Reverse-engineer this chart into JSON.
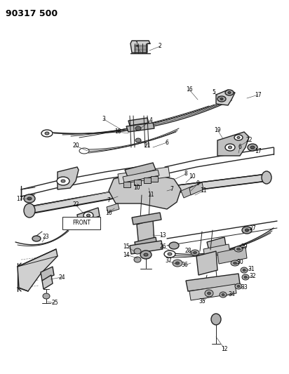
{
  "title": "90317 500",
  "bg": "#ffffff",
  "lc": "#222222",
  "fig_w": 4.12,
  "fig_h": 5.33,
  "dpi": 100
}
